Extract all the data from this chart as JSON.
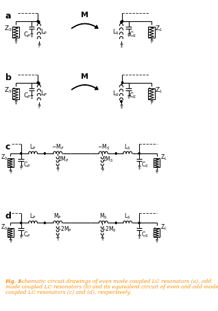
{
  "fig_width": 3.18,
  "fig_height": 4.54,
  "dpi": 100,
  "bg_color": "#ffffff",
  "line_color": "#000000",
  "caption_color": "#ff8c00",
  "caption_bold": "Fig. 1.",
  "caption_rest_1": " Schematic circuit drawings of even mode coupled LC resonators (a), odd",
  "caption_rest_2": "mode coupled LC resonators (b) and its equivalent circuit of even and odd mode",
  "caption_rest_3": "coupled LC resonators (c) and (d), respectively."
}
